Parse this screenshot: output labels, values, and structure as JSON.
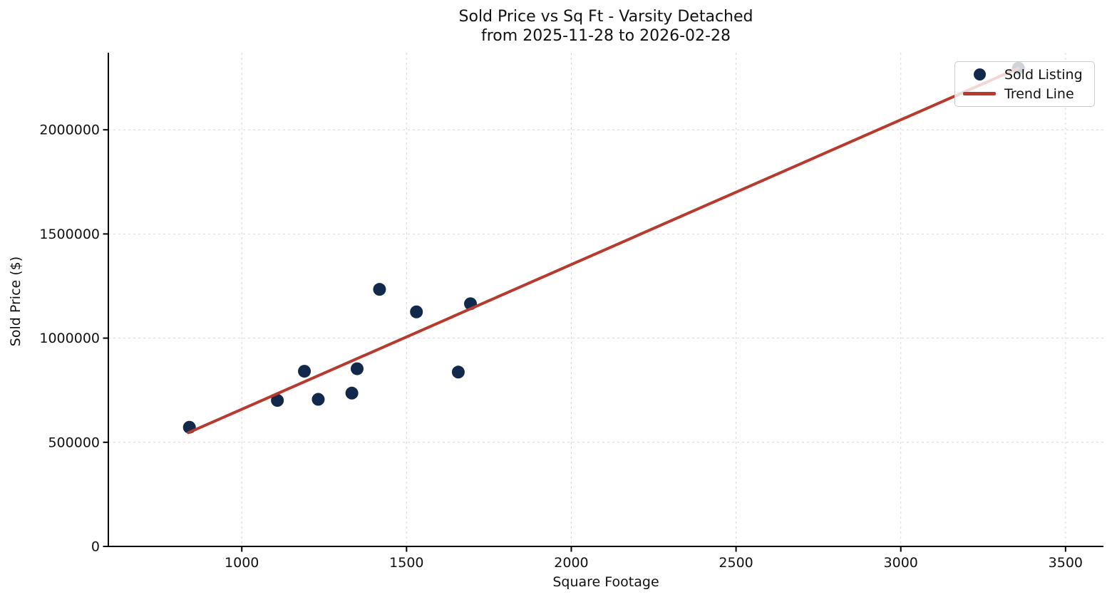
{
  "title": {
    "line1": "Sold Price vs Sq Ft - Varsity Detached",
    "line2": "from 2025-11-28 to 2026-02-28"
  },
  "colors": {
    "point": "#13294b",
    "trend": "#b83a2e",
    "grid": "#d9d9d9",
    "spine": "#000000",
    "text": "#111111",
    "legend_border": "#cccccc"
  },
  "chart_data": {
    "type": "scatter",
    "title": "Sold Price vs Sq Ft - Varsity Detached",
    "subtitle": "from 2025-11-28 to 2026-02-28",
    "xlabel": "Square Footage",
    "ylabel": "Sold Price ($)",
    "xlim": [
      595,
      3615
    ],
    "ylim": [
      0,
      2370000
    ],
    "x_ticks": [
      1000,
      1500,
      2000,
      2500,
      3000,
      3500
    ],
    "y_ticks": [
      0,
      500000,
      1000000,
      1500000,
      2000000
    ],
    "grid": true,
    "grid_style": "dashed",
    "legend_position": "upper right",
    "series": [
      {
        "name": "Sold Listing",
        "kind": "scatter",
        "color": "#13294b",
        "points": [
          [
            841,
            572000
          ],
          [
            1108,
            701000
          ],
          [
            1190,
            841000
          ],
          [
            1232,
            706000
          ],
          [
            1334,
            736000
          ],
          [
            1350,
            853000
          ],
          [
            1418,
            1234000
          ],
          [
            1530,
            1126000
          ],
          [
            1657,
            837000
          ],
          [
            1694,
            1165000
          ],
          [
            3357,
            2296000
          ]
        ]
      },
      {
        "name": "Trend Line",
        "kind": "line",
        "color": "#b83a2e",
        "points": [
          [
            838,
            546000
          ],
          [
            3357,
            2296000
          ]
        ]
      }
    ]
  }
}
